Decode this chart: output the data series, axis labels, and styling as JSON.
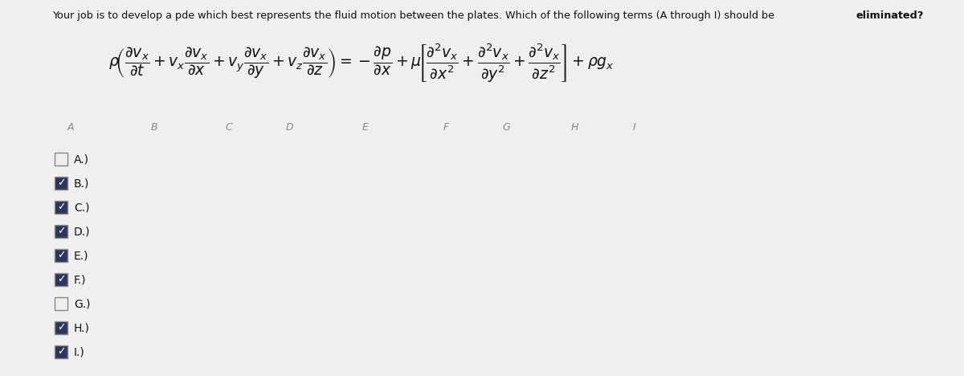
{
  "title_normal": "Your job is to develop a pde which best represents the fluid motion between the plates. Which of the following terms (A through I) should be ",
  "title_bold": "eliminated?",
  "labels": [
    "A",
    "B",
    "C",
    "D",
    "E",
    "F",
    "G",
    "H",
    "I"
  ],
  "checked": [
    false,
    true,
    true,
    true,
    true,
    true,
    false,
    true,
    true
  ],
  "bg_color": "#f0efed",
  "check_fill": "#2d3561",
  "check_border": "#888888",
  "text_color": "#111111",
  "label_color": "#888888"
}
